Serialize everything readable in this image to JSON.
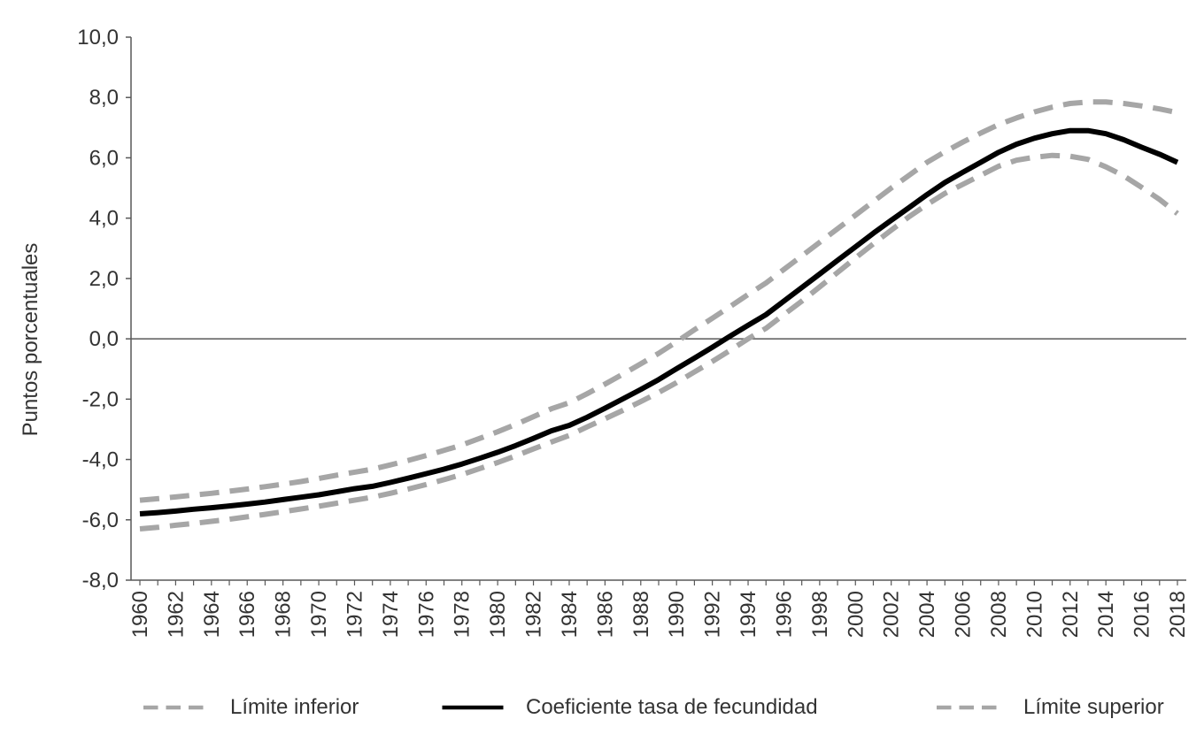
{
  "chart_data": {
    "type": "line",
    "title": "",
    "xlabel": "",
    "ylabel": "Puntos porcentuales",
    "ylim": [
      -8,
      10
    ],
    "y_ticks": [
      "-8,0",
      "-6,0",
      "-4,0",
      "-2,0",
      "0,0",
      "2,0",
      "4,0",
      "6,0",
      "8,0",
      "10,0"
    ],
    "y_tick_values": [
      -8,
      -6,
      -4,
      -2,
      0,
      2,
      4,
      6,
      8,
      10
    ],
    "x": [
      1960,
      1961,
      1962,
      1963,
      1964,
      1965,
      1966,
      1967,
      1968,
      1969,
      1970,
      1971,
      1972,
      1973,
      1974,
      1975,
      1976,
      1977,
      1978,
      1979,
      1980,
      1981,
      1982,
      1983,
      1984,
      1985,
      1986,
      1987,
      1988,
      1989,
      1990,
      1991,
      1992,
      1993,
      1994,
      1995,
      1996,
      1997,
      1998,
      1999,
      2000,
      2001,
      2002,
      2003,
      2004,
      2005,
      2006,
      2007,
      2008,
      2009,
      2010,
      2011,
      2012,
      2013,
      2014,
      2015,
      2016,
      2017,
      2018
    ],
    "x_tick_labels": [
      "1960",
      "1962",
      "1964",
      "1966",
      "1968",
      "1970",
      "1972",
      "1974",
      "1976",
      "1978",
      "1980",
      "1982",
      "1984",
      "1986",
      "1988",
      "1990",
      "1992",
      "1994",
      "1996",
      "1998",
      "2000",
      "2002",
      "2004",
      "2006",
      "2008",
      "2010",
      "2012",
      "2014",
      "2016",
      "2018"
    ],
    "legend_position": "bottom",
    "grid": false,
    "series": [
      {
        "name": "Límite inferior",
        "style": "dashed",
        "color": "#a6a6a6",
        "values": [
          -6.3,
          -6.25,
          -6.18,
          -6.12,
          -6.05,
          -5.98,
          -5.9,
          -5.82,
          -5.73,
          -5.64,
          -5.55,
          -5.45,
          -5.35,
          -5.25,
          -5.12,
          -4.98,
          -4.83,
          -4.67,
          -4.5,
          -4.3,
          -4.1,
          -3.88,
          -3.65,
          -3.42,
          -3.2,
          -2.92,
          -2.65,
          -2.37,
          -2.08,
          -1.78,
          -1.45,
          -1.1,
          -0.75,
          -0.38,
          0.0,
          0.35,
          0.8,
          1.25,
          1.72,
          2.2,
          2.68,
          3.15,
          3.6,
          4.05,
          4.45,
          4.82,
          5.12,
          5.42,
          5.72,
          5.92,
          6.02,
          6.08,
          6.05,
          5.95,
          5.7,
          5.4,
          5.02,
          4.62,
          4.15
        ]
      },
      {
        "name": "Coeficiente tasa de fecundidad",
        "style": "solid",
        "color": "#000000",
        "values": [
          -5.8,
          -5.76,
          -5.71,
          -5.65,
          -5.6,
          -5.54,
          -5.48,
          -5.41,
          -5.33,
          -5.25,
          -5.17,
          -5.07,
          -4.97,
          -4.89,
          -4.76,
          -4.62,
          -4.47,
          -4.32,
          -4.15,
          -3.96,
          -3.76,
          -3.54,
          -3.3,
          -3.05,
          -2.87,
          -2.6,
          -2.3,
          -1.99,
          -1.68,
          -1.35,
          -0.99,
          -0.64,
          -0.28,
          0.09,
          0.45,
          0.8,
          1.25,
          1.7,
          2.15,
          2.6,
          3.05,
          3.5,
          3.93,
          4.35,
          4.78,
          5.18,
          5.52,
          5.85,
          6.18,
          6.45,
          6.65,
          6.8,
          6.9,
          6.9,
          6.8,
          6.6,
          6.35,
          6.12,
          5.85
        ]
      },
      {
        "name": "Límite superior",
        "style": "dashed",
        "color": "#a6a6a6",
        "values": [
          -5.35,
          -5.3,
          -5.24,
          -5.18,
          -5.12,
          -5.05,
          -4.98,
          -4.9,
          -4.82,
          -4.73,
          -4.63,
          -4.52,
          -4.42,
          -4.32,
          -4.18,
          -4.03,
          -3.87,
          -3.7,
          -3.52,
          -3.3,
          -3.08,
          -2.84,
          -2.58,
          -2.32,
          -2.12,
          -1.82,
          -1.5,
          -1.17,
          -0.83,
          -0.48,
          -0.1,
          0.3,
          0.68,
          1.07,
          1.47,
          1.85,
          2.3,
          2.75,
          3.2,
          3.65,
          4.1,
          4.55,
          5.0,
          5.42,
          5.85,
          6.2,
          6.52,
          6.82,
          7.1,
          7.32,
          7.52,
          7.68,
          7.8,
          7.85,
          7.85,
          7.8,
          7.72,
          7.62,
          7.5
        ]
      }
    ]
  }
}
